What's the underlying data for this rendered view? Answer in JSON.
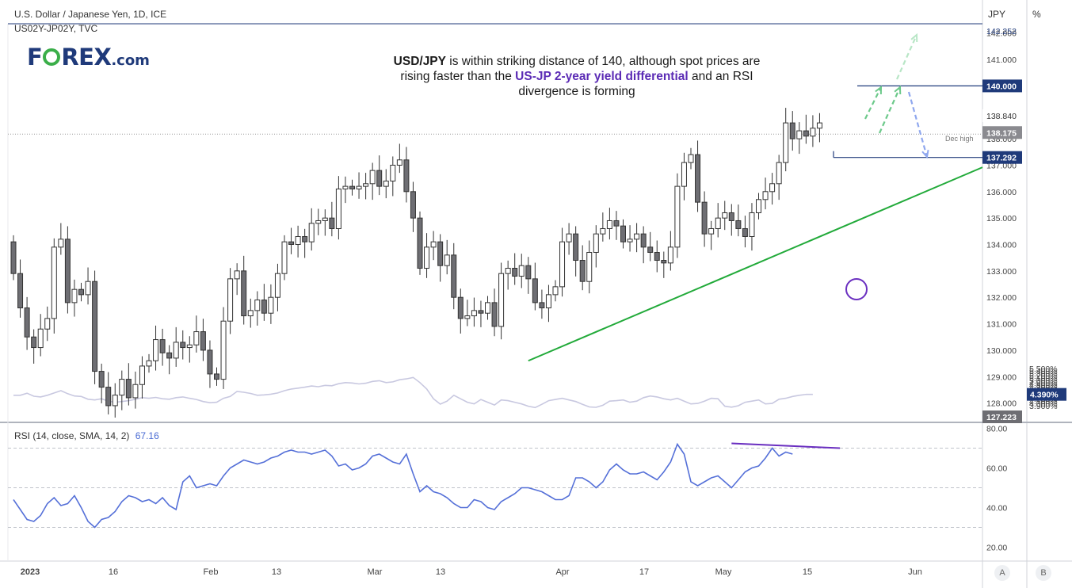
{
  "header": {
    "main_title": "U.S. Dollar / Japanese Yen, 1D, ICE",
    "sub_title": "US02Y-JP02Y, TVC",
    "unit_left": "JPY",
    "unit_right": "%",
    "rsi_label": "RSI (14, close, SMA, 14, 2)",
    "rsi_value": "67.16"
  },
  "logo": {
    "part1": "F",
    "part2": "REX",
    "suffix": ".com"
  },
  "annotation": {
    "t1": "USD/JPY",
    "t2": " is within striking distance of 140, although spot prices are rising faster than the ",
    "t3": "US-JP 2-year yield differential",
    "t4": " and an RSI divergence is forming"
  },
  "bottom_buttons": {
    "a": "A",
    "b": "B"
  },
  "chart_data": [
    {
      "type": "candlestick",
      "series_name": "U.S. Dollar / Japanese Yen, 1D, ICE",
      "y_axis_unit": "JPY",
      "ylim": [
        127.223,
        142.3
      ],
      "y_ticks": [
        "128.000",
        "129.000",
        "130.000",
        "131.000",
        "132.000",
        "133.000",
        "134.000",
        "135.000",
        "136.000",
        "137.000",
        "138.000",
        "139.000",
        "141.000",
        "142.000"
      ],
      "x_ticks": [
        "2023",
        "16",
        "Feb",
        "13",
        "Mar",
        "13",
        "Apr",
        "17",
        "May",
        "15",
        "Jun"
      ],
      "closes": [
        132.9,
        131.6,
        130.5,
        130.1,
        130.8,
        131.2,
        133.9,
        134.2,
        131.8,
        132.3,
        132.1,
        132.6,
        129.2,
        128.6,
        127.9,
        128.3,
        128.9,
        128.2,
        128.7,
        129.4,
        129.6,
        130.4,
        129.9,
        129.7,
        130.3,
        130.1,
        130.2,
        130.7,
        130.0,
        129.1,
        128.9,
        131.1,
        132.7,
        133.0,
        131.3,
        131.5,
        131.9,
        131.4,
        132.0,
        132.9,
        134.1,
        134.0,
        134.3,
        134.1,
        134.8,
        134.9,
        135.0,
        134.6,
        136.1,
        136.2,
        136.1,
        136.2,
        136.3,
        136.8,
        136.2,
        136.4,
        137.0,
        137.2,
        136.0,
        135.0,
        133.1,
        133.9,
        134.1,
        133.2,
        133.6,
        132.0,
        131.2,
        131.3,
        131.5,
        131.4,
        131.8,
        130.9,
        132.9,
        133.1,
        132.8,
        133.2,
        132.7,
        131.8,
        131.6,
        132.1,
        132.4,
        134.1,
        134.4,
        133.4,
        132.6,
        133.7,
        134.4,
        134.6,
        134.9,
        134.7,
        134.1,
        134.2,
        134.4,
        133.9,
        133.7,
        133.4,
        133.3,
        133.9,
        136.2,
        137.1,
        137.4,
        135.6,
        134.4,
        134.6,
        135.0,
        135.2,
        134.9,
        134.6,
        134.3,
        135.2,
        135.7,
        136.0,
        136.3,
        137.1,
        138.6,
        138.0,
        138.3,
        138.1,
        138.4,
        138.6
      ],
      "dec_high_line": 137.292,
      "dec_high_label": "Dec high",
      "target_line": 140.0,
      "price_labels": [
        "142.252",
        "140.000",
        "138.840",
        "138.175",
        "137.292",
        "127.223"
      ],
      "trendline": {
        "from_index": 76,
        "from_price": 129.6,
        "to_index": 151,
        "to_price": 136.5
      }
    },
    {
      "type": "line",
      "series_name": "US02Y-JP02Y, TVC",
      "y_axis_unit": "%",
      "ylim": [
        3.81,
        5.6
      ],
      "y_ticks": [
        "3.900%",
        "4.000%",
        "4.100%",
        "4.200%",
        "4.300%",
        "4.400%",
        "4.500%",
        "4.600%",
        "4.700%",
        "4.800%",
        "4.900%",
        "5.000%",
        "5.100%",
        "5.200%",
        "5.300%",
        "5.400%",
        "5.500%"
      ],
      "values": [
        4.35,
        4.35,
        4.44,
        4.31,
        4.28,
        4.35,
        4.45,
        4.55,
        4.42,
        4.32,
        4.3,
        4.18,
        4.15,
        4.2,
        4.1,
        4.05,
        4.08,
        4.12,
        4.18,
        4.25,
        4.22,
        4.26,
        4.2,
        4.18,
        4.25,
        4.28,
        4.22,
        4.17,
        4.08,
        4.03,
        4.05,
        4.22,
        4.3,
        4.52,
        4.48,
        4.43,
        4.35,
        4.37,
        4.4,
        4.45,
        4.55,
        4.62,
        4.66,
        4.7,
        4.75,
        4.72,
        4.78,
        4.76,
        4.85,
        4.9,
        4.88,
        4.84,
        4.87,
        4.95,
        4.98,
        4.9,
        4.93,
        5.02,
        5.06,
        5.12,
        4.9,
        4.62,
        4.2,
        3.97,
        4.1,
        4.35,
        4.2,
        4.05,
        3.98,
        4.17,
        4.05,
        3.93,
        4.15,
        4.12,
        4.05,
        3.98,
        3.88,
        3.82,
        3.96,
        4.12,
        4.17,
        4.22,
        4.15,
        4.08,
        3.96,
        3.85,
        3.83,
        3.92,
        4.1,
        4.12,
        4.15,
        4.05,
        4.1,
        4.25,
        4.32,
        4.28,
        4.2,
        4.15,
        4.22,
        4.1,
        3.98,
        4.0,
        4.1,
        4.22,
        4.2,
        3.88,
        3.84,
        3.9,
        4.05,
        4.1,
        4.15,
        3.98,
        4.0,
        4.18,
        4.22,
        4.3,
        4.35,
        4.39,
        4.39
      ],
      "last_value_label": "4.390%"
    },
    {
      "type": "line",
      "series_name": "RSI (14, close, SMA, 14, 2)",
      "ylim": [
        10,
        80
      ],
      "y_ticks": [
        "20.00",
        "40.00",
        "60.00",
        "80.00"
      ],
      "reference_lines": [
        30,
        50,
        70
      ],
      "values": [
        44,
        39,
        34,
        33,
        36,
        42,
        45,
        41,
        42,
        46,
        40,
        33,
        30,
        34,
        35,
        38,
        43,
        46,
        45,
        43,
        44,
        42,
        45,
        41,
        39,
        53,
        56,
        50,
        51,
        52,
        51,
        56,
        60,
        62,
        64,
        63,
        62,
        63,
        65,
        66,
        68,
        69,
        68,
        68,
        67,
        68,
        69,
        66,
        61,
        62,
        59,
        60,
        62,
        66,
        67,
        65,
        63,
        62,
        67,
        57,
        48,
        51,
        48,
        47,
        45,
        42,
        40,
        40,
        44,
        43,
        40,
        39,
        43,
        45,
        47,
        50,
        50,
        49,
        48,
        46,
        44,
        44,
        46,
        55,
        55,
        53,
        50,
        53,
        59,
        62,
        59,
        57,
        57,
        58,
        56,
        54,
        58,
        63,
        72,
        67,
        53,
        51,
        53,
        55,
        56,
        53,
        50,
        54,
        58,
        60,
        61,
        65,
        70,
        66,
        68,
        67
      ]
    }
  ]
}
